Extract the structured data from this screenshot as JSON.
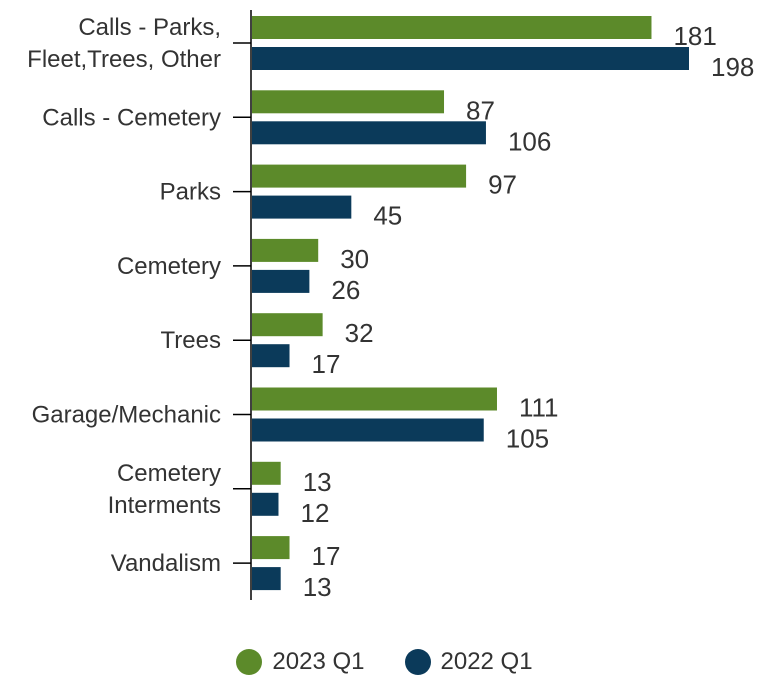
{
  "chart_data": {
    "type": "bar",
    "orientation": "horizontal",
    "categories": [
      [
        "Calls - Parks,",
        "Fleet,Trees, Other"
      ],
      [
        "Calls - Cemetery"
      ],
      [
        "Parks"
      ],
      [
        "Cemetery"
      ],
      [
        "Trees"
      ],
      [
        "Garage/Mechanic"
      ],
      [
        "Cemetery",
        "Interments"
      ],
      [
        "Vandalism"
      ]
    ],
    "series": [
      {
        "name": "2023 Q1",
        "color": "#5c8a2a",
        "values": [
          181,
          87,
          97,
          30,
          32,
          111,
          13,
          17
        ]
      },
      {
        "name": "2022 Q1",
        "color": "#0b3a5a",
        "values": [
          198,
          106,
          45,
          26,
          17,
          105,
          12,
          13
        ]
      }
    ],
    "xlim": [
      0,
      220
    ],
    "grid": false,
    "legend_position": "bottom"
  }
}
